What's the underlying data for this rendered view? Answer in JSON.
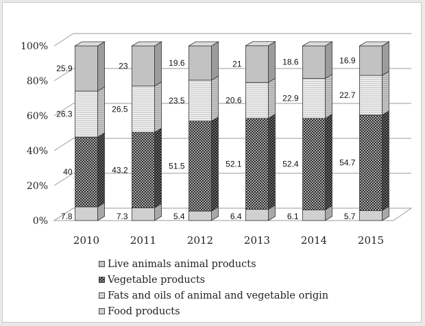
{
  "chart_data": {
    "type": "bar",
    "stacked": true,
    "style": "3d-column",
    "categories": [
      "2010",
      "2011",
      "2012",
      "2013",
      "2014",
      "2015"
    ],
    "series": [
      {
        "name": "Food products",
        "key": "food",
        "values": [
          7.8,
          7.3,
          5.4,
          6.4,
          6.1,
          5.7
        ]
      },
      {
        "name": "Fats and oils of animal and vegetable origin",
        "key": "fats",
        "values": [
          40,
          43.2,
          51.5,
          52.1,
          52.4,
          54.7
        ]
      },
      {
        "name": "Vegetable products",
        "key": "veg",
        "values": [
          26.3,
          26.5,
          23.5,
          20.6,
          22.9,
          22.7
        ]
      },
      {
        "name": "Live animals animal products",
        "key": "live",
        "values": [
          25.9,
          23,
          19.6,
          21,
          18.6,
          16.9
        ]
      }
    ],
    "yticks": [
      "0%",
      "20%",
      "40%",
      "60%",
      "80%",
      "100%"
    ],
    "ylim": [
      0,
      100
    ],
    "grid": true,
    "legend": {
      "position": "bottom",
      "items": [
        {
          "label": "Live animals animal products",
          "swatch": "live"
        },
        {
          "label": "Vegetable products",
          "swatch": "veg"
        },
        {
          "label": "Fats and oils of animal and vegetable origin",
          "swatch": "fats"
        },
        {
          "label": "Food products",
          "swatch": "food"
        }
      ]
    },
    "colors": {
      "live": "#c2c2c2",
      "veg": "#dcdcdc",
      "fats": "#3a3a3a",
      "food": "#d0d0d0"
    }
  }
}
